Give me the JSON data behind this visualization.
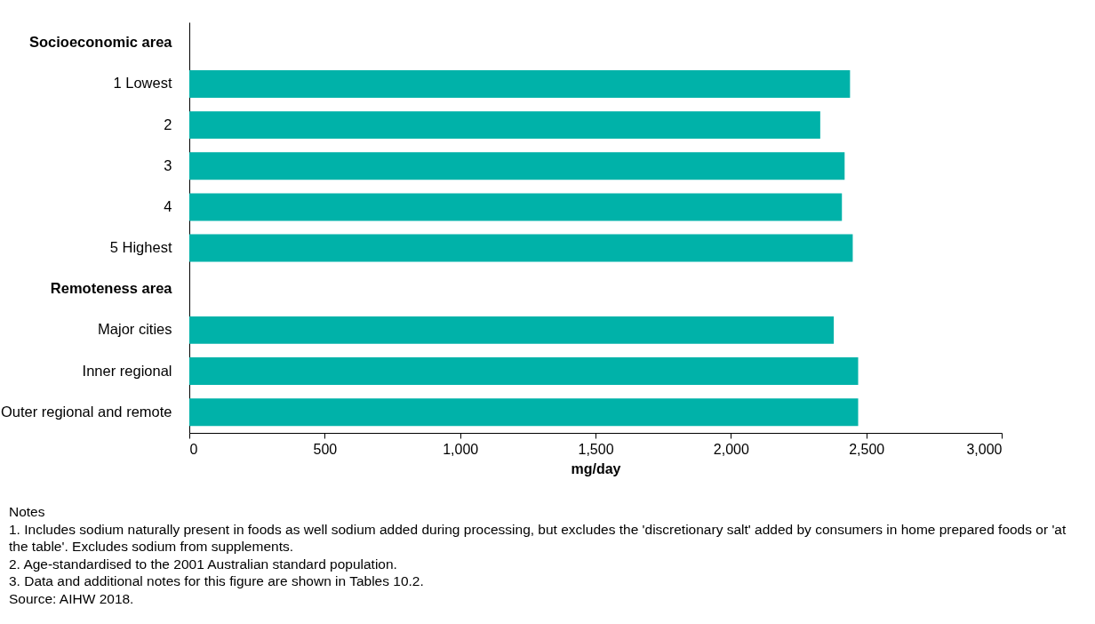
{
  "chart_data": {
    "type": "bar",
    "orientation": "horizontal",
    "categories": [
      "Socioeconomic area",
      "1 Lowest",
      "2",
      "3",
      "4",
      "5 Highest",
      "Remoteness area",
      "Major cities",
      "Inner regional",
      "Outer regional and remote"
    ],
    "values": [
      null,
      2440,
      2330,
      2420,
      2410,
      2450,
      null,
      2380,
      2470,
      2470
    ],
    "color": "#00b2a9",
    "xlim": [
      0,
      3000
    ],
    "xticks": [
      0,
      500,
      {
        "value": 1000,
        "label": "1,000"
      },
      {
        "value": 1500,
        "label": "1,500"
      },
      {
        "value": 2000,
        "label": "2,000"
      },
      {
        "value": 2500,
        "label": "2,500"
      },
      {
        "value": 3000,
        "label": "3,000"
      }
    ],
    "xlabel": "mg/day",
    "grid": false,
    "annotations": [
      "Notes",
      "1. Includes sodium naturally present in foods as well sodium added during processing, but excludes the 'discretionary salt' added by consumers in home prepared foods or 'at the table'. Excludes sodium from supplements.",
      "2. Age-standardised to the 2001 Australian standard population.",
      "3. Data and additional notes for this figure are shown in Tables 10.2.",
      "Source: AIHW 2018."
    ]
  }
}
